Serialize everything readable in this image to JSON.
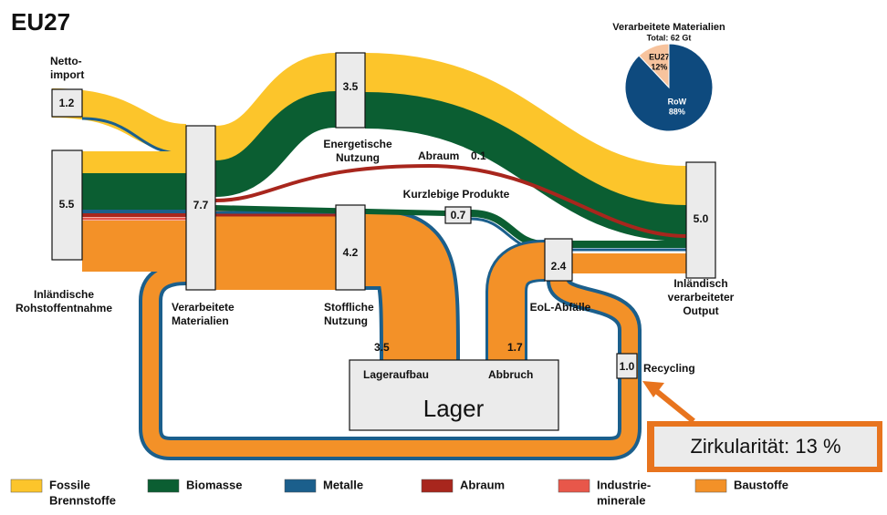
{
  "title": "EU27",
  "nodes": [
    {
      "label": [
        "Netto-",
        "import"
      ],
      "value": "1.2"
    },
    {
      "label": [
        "Inländische",
        "Rohstoffentnahme"
      ],
      "value": "5.5"
    },
    {
      "label": [
        "Verarbeitete",
        "Materialien"
      ],
      "value": "7.7"
    },
    {
      "label": [
        "Energetische",
        "Nutzung"
      ],
      "value": "3.5"
    },
    {
      "label": [
        "Stoffliche",
        "Nutzung"
      ],
      "value": "4.2"
    },
    {
      "label": [
        "Kurzlebige Produkte"
      ],
      "value": "0.7"
    },
    {
      "label": [
        "EoL-Abfälle"
      ],
      "value": "2.4"
    },
    {
      "label": [
        "Inländisch",
        "verarbeiteter",
        "Output"
      ],
      "value": "5.0"
    },
    {
      "label": [
        "Recycling"
      ],
      "value": "1.0"
    },
    {
      "label": [
        "Lager"
      ]
    }
  ],
  "flows": [
    {
      "label": "Abraum",
      "value": "0.1"
    },
    {
      "label": "Lageraufbau",
      "value": "3.5"
    },
    {
      "label": "Abbruch",
      "value": "1.7"
    }
  ],
  "circularity": "Zirkularität: 13 %",
  "legend": [
    {
      "name": [
        "Fossile",
        "Brennstoffe"
      ],
      "color": "#fcc52b"
    },
    {
      "name": [
        "Biomasse"
      ],
      "color": "#0b5e32"
    },
    {
      "name": [
        "Metalle"
      ],
      "color": "#1b5f8c"
    },
    {
      "name": [
        "Abraum"
      ],
      "color": "#a8261d"
    },
    {
      "name": [
        "Industrie-",
        "minerale"
      ],
      "color": "#e8574a"
    },
    {
      "name": [
        "Baustoffe"
      ],
      "color": "#f39128"
    }
  ],
  "chart_data": {
    "type": "pie",
    "title": "Verarbeitete Materialien",
    "subtitle": "Total: 62 Gt",
    "categories": [
      "EU27",
      "RoW"
    ],
    "values": [
      12,
      88
    ],
    "value_labels": [
      "12%",
      "88%"
    ],
    "colors": [
      "#f7c39d",
      "#0e4a7e"
    ]
  }
}
